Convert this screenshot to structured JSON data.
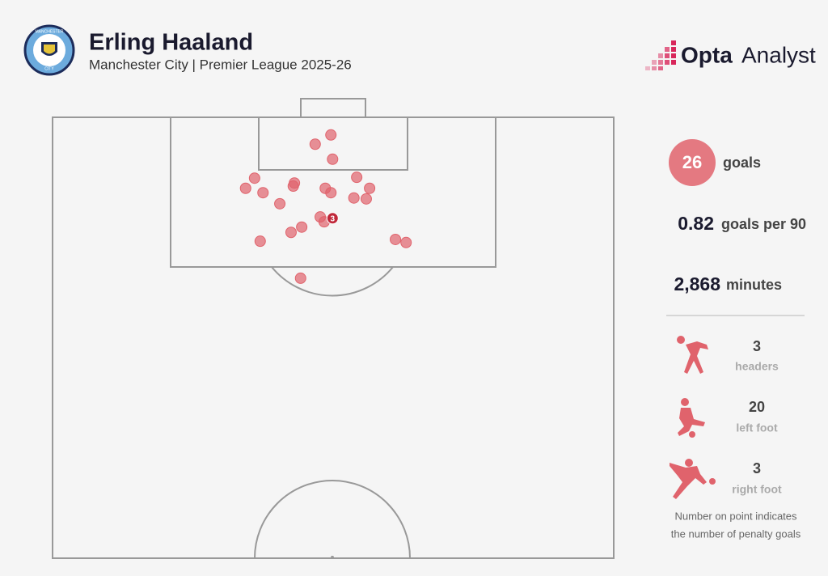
{
  "header": {
    "title": "Erling Haaland",
    "subtitle": "Manchester City | Premier League 2025-26",
    "badge_top": "MANCHESTER",
    "badge_bottom": "CITY",
    "brand_bold": "Opta",
    "brand_light": "Analyst"
  },
  "chart_data": {
    "type": "scatter",
    "color": "#e0636c",
    "x": [
      49.6,
      46.8,
      49.9,
      36.0,
      34.4,
      37.5,
      43.1,
      42.9,
      48.6,
      49.6,
      54.2,
      56.5,
      53.7,
      55.9,
      40.5,
      47.7,
      48.4,
      44.4,
      42.5,
      37.0,
      61.1,
      63.0,
      44.2
    ],
    "y": [
      4.0,
      6.1,
      9.5,
      13.8,
      16.1,
      17.1,
      14.9,
      15.6,
      16.1,
      17.1,
      13.6,
      16.1,
      18.3,
      18.5,
      19.6,
      22.6,
      23.7,
      24.9,
      26.1,
      28.1,
      27.7,
      28.4,
      36.5
    ],
    "penalty_spot": {
      "x": 49.9,
      "y": 22.9,
      "count": 3
    },
    "xlim": [
      0,
      100
    ],
    "ylim": [
      0,
      100
    ]
  },
  "summary": {
    "goals": {
      "value": 26,
      "label": "goals"
    },
    "per90": {
      "value": 0.82,
      "label": "goals per 90"
    },
    "minutes": {
      "value": 2868,
      "value_label": "2,868",
      "label": "minutes"
    },
    "headers": {
      "value": 3,
      "label": "headers"
    },
    "left_foot": {
      "value": 20,
      "label": "left foot"
    },
    "right_foot": {
      "value": 3,
      "label": "right foot"
    },
    "note_line1": "Number on point indicates",
    "note_line2": "the number of penalty goals"
  }
}
